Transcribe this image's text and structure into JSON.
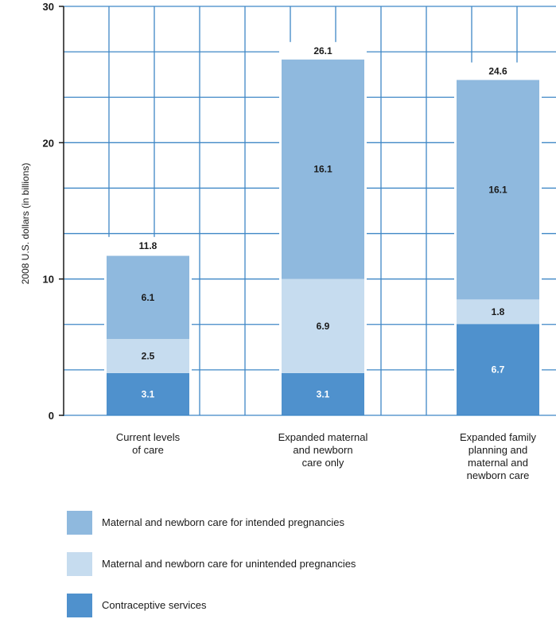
{
  "chart_data": {
    "type": "bar",
    "stacked": true,
    "ylabel": "2008 U.S. dollars (in billions)",
    "ylim": [
      0,
      30
    ],
    "yticks": [
      0,
      10,
      20,
      30
    ],
    "grid": true,
    "legend_position": "bottom",
    "categories": [
      [
        "Current levels",
        "of care"
      ],
      [
        "Expanded maternal",
        "and newborn",
        "care only"
      ],
      [
        "Expanded family",
        "planning and",
        "maternal and",
        "newborn care"
      ]
    ],
    "category_names": [
      "Current levels of care",
      "Expanded maternal and newborn care only",
      "Expanded family planning and maternal and newborn care"
    ],
    "series": [
      {
        "name": "Contraceptive services",
        "color": "#4f91cd",
        "label_color": "#ffffff",
        "values": [
          3.1,
          3.1,
          6.7
        ],
        "labels": [
          "3.1",
          "3.1",
          "6.7"
        ]
      },
      {
        "name": "Maternal and newborn care for unintended pregnancies",
        "color": "#c6dcef",
        "label_color": "#1a1a1a",
        "values": [
          2.5,
          6.9,
          1.8
        ],
        "labels": [
          "2.5",
          "6.9",
          "1.8"
        ]
      },
      {
        "name": "Maternal and newborn care for intended pregnancies",
        "color": "#8fb9de",
        "label_color": "#1a1a1a",
        "values": [
          6.1,
          16.1,
          16.1
        ],
        "labels": [
          "6.1",
          "16.1",
          "16.1"
        ]
      }
    ],
    "totals": [
      "11.8",
      "26.1",
      "24.6"
    ],
    "total_values": [
      11.8,
      26.1,
      24.6
    ]
  },
  "legend": [
    {
      "label": "Maternal and newborn care for intended pregnancies",
      "color": "#8fb9de"
    },
    {
      "label": "Maternal and newborn care for unintended pregnancies",
      "color": "#c6dcef"
    },
    {
      "label": "Contraceptive services",
      "color": "#4f91cd"
    }
  ]
}
